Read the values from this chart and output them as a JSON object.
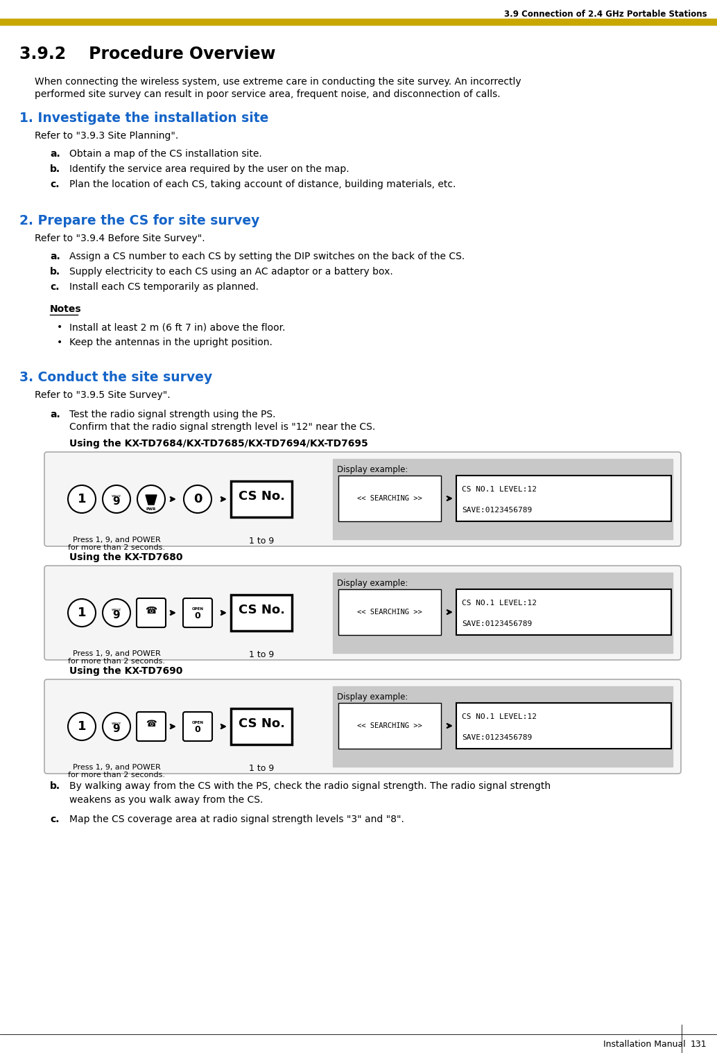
{
  "page_title": "3.9 Connection of 2.4 GHz Portable Stations",
  "section_title": "3.9.2    Procedure Overview",
  "header_bar_color": "#C8A800",
  "intro_text_1": "When connecting the wireless system, use extreme care in conducting the site survey. An incorrectly",
  "intro_text_2": "performed site survey can result in poor service area, frequent noise, and disconnection of calls.",
  "step1_title": "1. Investigate the installation site",
  "step1_ref": "Refer to \"3.9.3 Site Planning\".",
  "step1_items": [
    "Obtain a map of the CS installation site.",
    "Identify the service area required by the user on the map.",
    "Plan the location of each CS, taking account of distance, building materials, etc."
  ],
  "step2_title": "2. Prepare the CS for site survey",
  "step2_ref": "Refer to \"3.9.4 Before Site Survey\".",
  "step2_items": [
    "Assign a CS number to each CS by setting the DIP switches on the back of the CS.",
    "Supply electricity to each CS using an AC adaptor or a battery box.",
    "Install each CS temporarily as planned."
  ],
  "notes_title": "Notes",
  "notes_items": [
    "Install at least 2 m (6 ft 7 in) above the floor.",
    "Keep the antennas in the upright position."
  ],
  "step3_title": "3. Conduct the site survey",
  "step3_ref": "Refer to \"3.9.5 Site Survey\".",
  "step3a_text1": "Test the radio signal strength using the PS.",
  "step3a_text2": "Confirm that the radio signal strength level is \"12\" near the CS.",
  "using1": "Using the KX-TD7684/KX-TD7685/KX-TD7694/KX-TD7695",
  "using2": "Using the KX-TD7680",
  "using3": "Using the KX-TD7690",
  "press_text_line1": "Press 1, 9, and POWER",
  "press_text_line2": "for more than 2 seconds.",
  "cs_no_text": "CS No.",
  "one_to_nine": "1 to 9",
  "display_example": "Display example:",
  "searching_text": "<< SEARCHING >>",
  "display_line1": "CS NO.1 LEVEL:12",
  "display_line2": "SAVE:0123456789",
  "step3b_text1": "By walking away from the CS with the PS, check the radio signal strength. The radio signal strength",
  "step3b_text2": "weakens as you walk away from the CS.",
  "step3c_text": "Map the CS coverage area at radio signal strength levels \"3\" and \"8\".",
  "footer_text": "Installation Manual",
  "page_number": "131",
  "blue_color": "#1464C8",
  "black_color": "#000000",
  "bg_color": "#FFFFFF",
  "gray_bg": "#C8C8C8",
  "light_bg": "#F5F5F5",
  "box_border": "#AAAAAA"
}
